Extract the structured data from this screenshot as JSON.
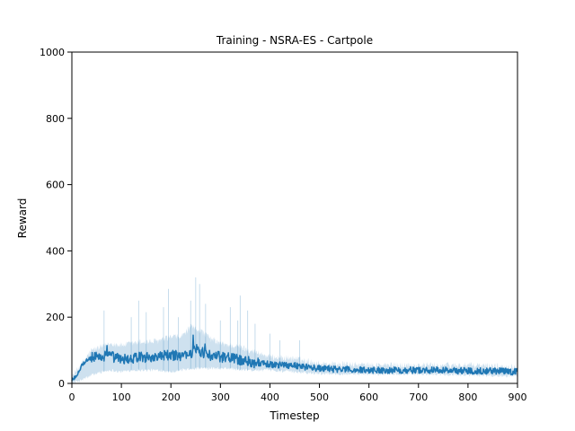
{
  "chart_data": {
    "type": "line",
    "title": "Training - NSRA-ES - Cartpole",
    "xlabel": "Timestep",
    "ylabel": "Reward",
    "xlim": [
      0,
      900
    ],
    "ylim": [
      0,
      1000
    ],
    "xticks": [
      0,
      100,
      200,
      300,
      400,
      500,
      600,
      700,
      800,
      900
    ],
    "yticks": [
      0,
      200,
      400,
      600,
      800,
      1000
    ],
    "grid": false,
    "legend": "none",
    "series_color": "#1f77b4",
    "band_color": "#1f77b4",
    "mean_anchors": {
      "x": [
        0,
        10,
        20,
        30,
        40,
        60,
        80,
        100,
        120,
        140,
        160,
        180,
        200,
        220,
        240,
        250,
        260,
        280,
        300,
        320,
        340,
        360,
        380,
        400,
        420,
        450,
        470,
        500,
        550,
        600,
        650,
        700,
        750,
        800,
        850,
        900
      ],
      "y": [
        10,
        25,
        55,
        70,
        78,
        80,
        82,
        72,
        75,
        80,
        78,
        82,
        85,
        84,
        90,
        110,
        95,
        85,
        80,
        78,
        70,
        65,
        60,
        57,
        56,
        55,
        50,
        45,
        42,
        40,
        40,
        40,
        40,
        38,
        38,
        35
      ]
    },
    "band_anchors": {
      "x": [
        0,
        20,
        40,
        60,
        80,
        100,
        120,
        140,
        160,
        180,
        200,
        220,
        240,
        260,
        280,
        300,
        320,
        340,
        360,
        380,
        400,
        450,
        500,
        600,
        700,
        800,
        900
      ],
      "upper": [
        20,
        60,
        100,
        110,
        120,
        115,
        120,
        125,
        125,
        130,
        140,
        140,
        170,
        160,
        135,
        120,
        115,
        110,
        100,
        90,
        80,
        75,
        60,
        55,
        55,
        55,
        50
      ],
      "lower": [
        0,
        10,
        25,
        35,
        40,
        35,
        40,
        40,
        40,
        40,
        35,
        40,
        45,
        45,
        45,
        45,
        45,
        40,
        40,
        40,
        40,
        35,
        30,
        28,
        28,
        25,
        22
      ]
    },
    "spikes": [
      {
        "x": 65,
        "y": 220
      },
      {
        "x": 120,
        "y": 200
      },
      {
        "x": 135,
        "y": 250
      },
      {
        "x": 150,
        "y": 215
      },
      {
        "x": 185,
        "y": 230
      },
      {
        "x": 195,
        "y": 285
      },
      {
        "x": 215,
        "y": 200
      },
      {
        "x": 240,
        "y": 250
      },
      {
        "x": 250,
        "y": 320
      },
      {
        "x": 258,
        "y": 300
      },
      {
        "x": 270,
        "y": 240
      },
      {
        "x": 300,
        "y": 190
      },
      {
        "x": 320,
        "y": 230
      },
      {
        "x": 335,
        "y": 190
      },
      {
        "x": 340,
        "y": 265
      },
      {
        "x": 355,
        "y": 220
      },
      {
        "x": 370,
        "y": 180
      },
      {
        "x": 400,
        "y": 150
      },
      {
        "x": 420,
        "y": 130
      },
      {
        "x": 460,
        "y": 130
      }
    ]
  }
}
